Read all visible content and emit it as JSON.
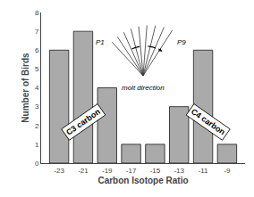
{
  "chart_data": {
    "type": "bar",
    "x": [
      -23,
      -21,
      -19,
      -17,
      -15,
      -13,
      -11,
      -9
    ],
    "values": [
      6,
      7,
      4,
      1,
      1,
      3,
      6,
      1
    ],
    "color": "#aaaaaa",
    "xlabel": "Carbon Isotope Ratio",
    "ylabel": "Number of Birds",
    "xlim": [
      -24.5,
      -7.5
    ],
    "xticks": [
      -23,
      -21,
      -19,
      -17,
      -15,
      -13,
      -11,
      -9
    ],
    "ylim": [
      0,
      8
    ],
    "yticks": [
      0,
      1,
      2,
      3,
      4,
      5,
      6,
      7,
      8
    ],
    "grid": false,
    "annotations": [
      "C3 carbon",
      "C4 carbon",
      "P1",
      "P9",
      "molt direction"
    ]
  }
}
